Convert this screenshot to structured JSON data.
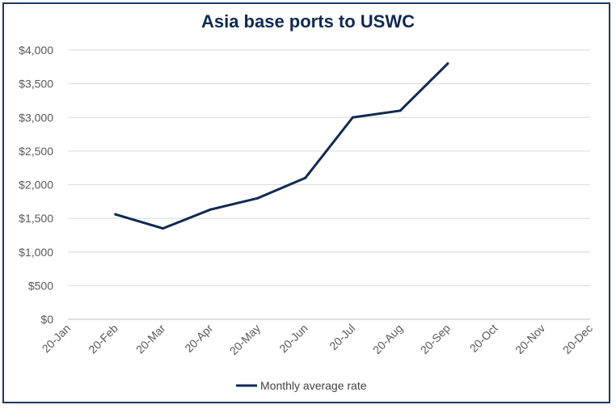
{
  "chart_data": {
    "type": "line",
    "title": "Asia base ports to USWC",
    "categories": [
      "20-Jan",
      "20-Feb",
      "20-Mar",
      "20-Apr",
      "20-May",
      "20-Jun",
      "20-Jul",
      "20-Aug",
      "20-Sep",
      "20-Oct",
      "20-Nov",
      "20-Dec"
    ],
    "series": [
      {
        "name": "Monthly average rate",
        "values": [
          null,
          1560,
          1350,
          1630,
          1800,
          2100,
          3000,
          3100,
          3800,
          null,
          null,
          null
        ],
        "color": "#0e2a52"
      }
    ],
    "ylim": [
      0,
      4000
    ],
    "yticks": [
      "$0",
      "$500",
      "$1,000",
      "$1,500",
      "$2,000",
      "$2,500",
      "$3,000",
      "$3,500",
      "$4,000"
    ],
    "ytick_values": [
      0,
      500,
      1000,
      1500,
      2000,
      2500,
      3000,
      3500,
      4000
    ],
    "grid": true,
    "legend_position": "bottom"
  },
  "colors": {
    "line": "#0e2a52",
    "frame": "#1f3864",
    "grid": "#d9d9d9",
    "axis_text": "#595959"
  }
}
